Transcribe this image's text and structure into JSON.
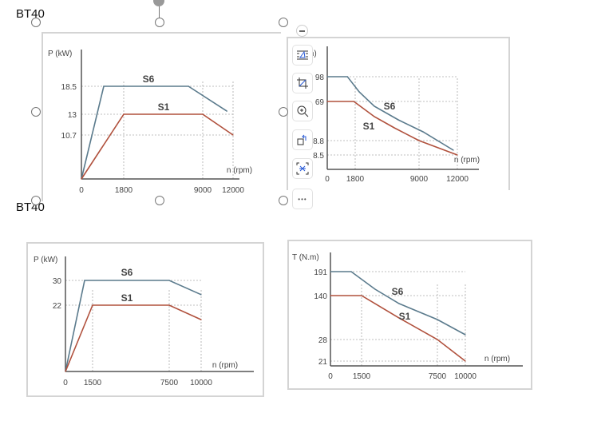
{
  "document": {
    "headings": [
      "BT40",
      "BT40"
    ]
  },
  "toolbar": {
    "collapse": "collapse-icon",
    "items": [
      "text-wrap-icon",
      "crop-icon",
      "zoom-in-icon",
      "rotate-icon",
      "fit-icon",
      "more-icon"
    ],
    "more_label": "•••"
  },
  "chart_data": [
    {
      "type": "line",
      "ylabel": "P (kW)",
      "xlabel": "n (rpm)",
      "xticks": [
        "0",
        "1800",
        "9000",
        "12000"
      ],
      "yticks": [
        "18.5",
        "13",
        "10.7"
      ],
      "series": [
        {
          "name": "S6",
          "color": "#5a7a8c",
          "points": [
            [
              0,
              0
            ],
            [
              950,
              18.5
            ],
            [
              7700,
              18.5
            ],
            [
              11400,
              13.6
            ]
          ]
        },
        {
          "name": "S1",
          "color": "#b0503c",
          "points": [
            [
              0,
              0
            ],
            [
              1800,
              13
            ],
            [
              9000,
              13
            ],
            [
              12000,
              10.7
            ]
          ]
        }
      ]
    },
    {
      "type": "line",
      "ylabel": "m)",
      "xlabel": "n (rpm)",
      "xticks": [
        "0",
        "1800",
        "9000",
        "12000"
      ],
      "yticks": [
        "98",
        "69",
        "8.8",
        "8.5"
      ],
      "series": [
        {
          "name": "S6",
          "color": "#5a7a8c",
          "points": [
            [
              0,
              98
            ],
            [
              1300,
              98
            ],
            [
              2250,
              80.2
            ],
            [
              3960,
              61.6
            ],
            [
              6660,
              40.7
            ],
            [
              9310,
              22.3
            ],
            [
              11690,
              8.6
            ]
          ]
        },
        {
          "name": "S1",
          "color": "#b0503c",
          "points": [
            [
              0,
              69
            ],
            [
              1710,
              69
            ],
            [
              3960,
              45.7
            ],
            [
              6210,
              28.5
            ],
            [
              9000,
              8.8
            ],
            [
              12000,
              8.5
            ]
          ]
        }
      ]
    },
    {
      "type": "line",
      "ylabel": "P (kW)",
      "xlabel": "n (rpm)",
      "xticks": [
        "0",
        "1500",
        "7500",
        "10000"
      ],
      "yticks": [
        "30",
        "22"
      ],
      "series": [
        {
          "name": "S6",
          "color": "#5a7a8c",
          "points": [
            [
              0,
              0
            ],
            [
              1060,
              30
            ],
            [
              7500,
              30
            ],
            [
              10000,
              25.4
            ]
          ]
        },
        {
          "name": "S1",
          "color": "#b0503c",
          "points": [
            [
              0,
              0
            ],
            [
              1500,
              22
            ],
            [
              7500,
              22
            ],
            [
              10000,
              17.2
            ]
          ]
        }
      ]
    },
    {
      "type": "line",
      "ylabel": "T (N.m)",
      "xlabel": "n (rpm)",
      "xticks": [
        "0",
        "1500",
        "7500",
        "10000"
      ],
      "yticks": [
        "191",
        "140",
        "28",
        "21"
      ],
      "series": [
        {
          "name": "S6",
          "color": "#5a7a8c",
          "points": [
            [
              0,
              191
            ],
            [
              1000,
              191
            ],
            [
              2570,
              153.6
            ],
            [
              4470,
              119.6
            ],
            [
              7500,
              78.9
            ],
            [
              10000,
              40.2
            ]
          ]
        },
        {
          "name": "S1",
          "color": "#b0503c",
          "points": [
            [
              0,
              140
            ],
            [
              1500,
              140
            ],
            [
              4470,
              83
            ],
            [
              7500,
              28
            ],
            [
              10000,
              21
            ]
          ]
        }
      ]
    }
  ]
}
